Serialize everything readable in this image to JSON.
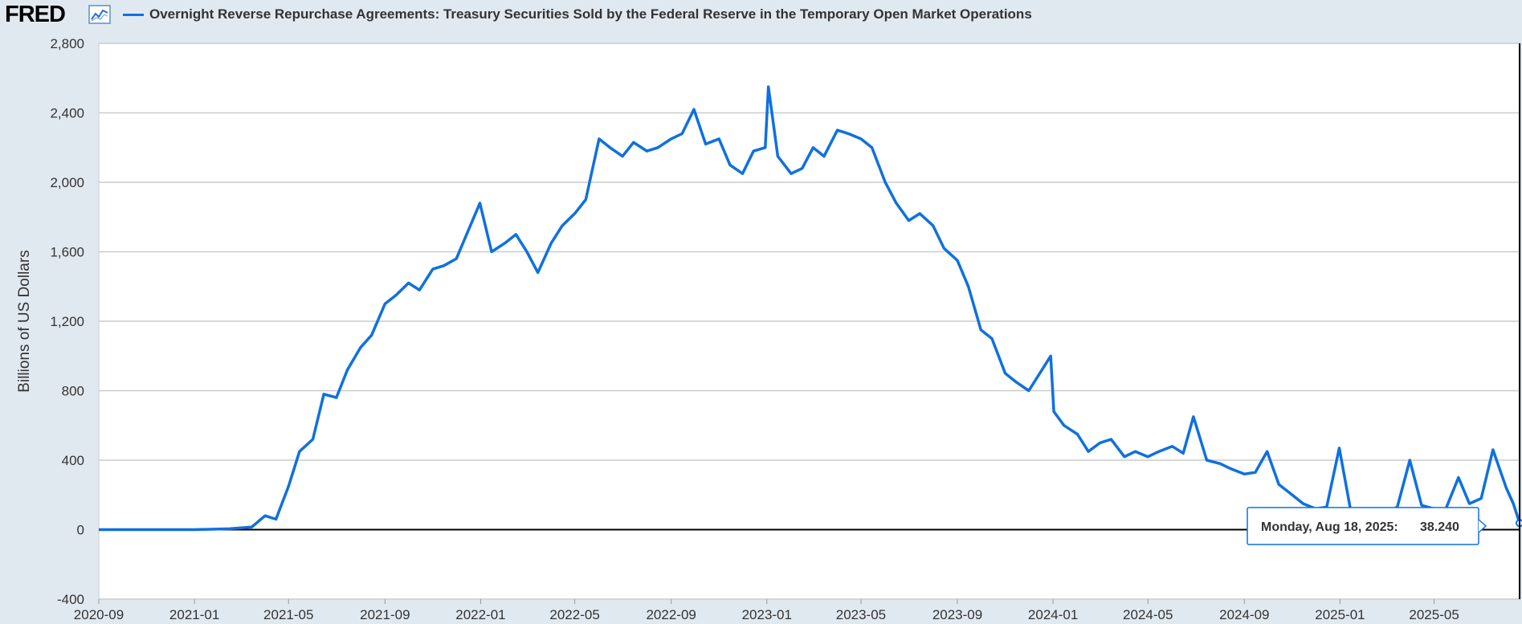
{
  "header": {
    "logo_text": "FRED",
    "logo_icon": "line-chart-icon",
    "series_title": "Overnight Reverse Repurchase Agreements: Treasury Securities Sold by the Federal Reserve in the Temporary Open Market Operations"
  },
  "tooltip": {
    "date": "Monday, Aug 18, 2025:",
    "value": "38.240"
  },
  "colors": {
    "series": "#0f70e0",
    "background": "#e1e9f0",
    "plot_background": "#ffffff"
  },
  "chart_data": {
    "type": "line",
    "title": "Overnight Reverse Repurchase Agreements: Treasury Securities Sold by the Federal Reserve in the Temporary Open Market Operations",
    "xlabel": "",
    "ylabel": "Billions of US Dollars",
    "ylim": [
      -400,
      2800
    ],
    "yticks": [
      -400,
      0,
      400,
      800,
      1200,
      1600,
      2000,
      2400,
      2800
    ],
    "ytick_labels": [
      "-400",
      "0",
      "400",
      "800",
      "1,200",
      "1,600",
      "2,000",
      "2,400",
      "2,800"
    ],
    "xlim": [
      "2020-09-01",
      "2025-08-18"
    ],
    "xtick_labels": [
      "2020-09",
      "2021-01",
      "2021-05",
      "2021-09",
      "2022-01",
      "2022-05",
      "2022-09",
      "2023-01",
      "2023-05",
      "2023-09",
      "2024-01",
      "2024-05",
      "2024-09",
      "2025-01",
      "2025-05"
    ],
    "grid": true,
    "series": [
      {
        "x": [
          "2020-09-01",
          "2020-11-01",
          "2021-01-01",
          "2021-02-15",
          "2021-03-15",
          "2021-04-01",
          "2021-04-15",
          "2021-05-01",
          "2021-05-15",
          "2021-06-01",
          "2021-06-15",
          "2021-07-01",
          "2021-07-15",
          "2021-08-01",
          "2021-08-15",
          "2021-09-01",
          "2021-09-15",
          "2021-10-01",
          "2021-10-15",
          "2021-11-01",
          "2021-11-15",
          "2021-12-01",
          "2021-12-31",
          "2022-01-15",
          "2022-02-01",
          "2022-02-15",
          "2022-03-01",
          "2022-03-15",
          "2022-04-01",
          "2022-04-15",
          "2022-05-01",
          "2022-05-15",
          "2022-06-01",
          "2022-06-15",
          "2022-07-01",
          "2022-07-15",
          "2022-08-01",
          "2022-08-15",
          "2022-09-01",
          "2022-09-15",
          "2022-09-30",
          "2022-10-15",
          "2022-11-01",
          "2022-11-15",
          "2022-12-01",
          "2022-12-15",
          "2022-12-30",
          "2023-01-03",
          "2023-01-15",
          "2023-02-01",
          "2023-02-15",
          "2023-03-01",
          "2023-03-15",
          "2023-04-01",
          "2023-04-15",
          "2023-05-01",
          "2023-05-15",
          "2023-06-01",
          "2023-06-15",
          "2023-07-01",
          "2023-07-15",
          "2023-08-01",
          "2023-08-15",
          "2023-09-01",
          "2023-09-15",
          "2023-10-01",
          "2023-10-15",
          "2023-11-01",
          "2023-11-15",
          "2023-12-01",
          "2023-12-29",
          "2024-01-02",
          "2024-01-15",
          "2024-02-01",
          "2024-02-15",
          "2024-03-01",
          "2024-03-15",
          "2024-04-01",
          "2024-04-15",
          "2024-05-01",
          "2024-05-15",
          "2024-06-01",
          "2024-06-15",
          "2024-06-28",
          "2024-07-15",
          "2024-08-01",
          "2024-08-15",
          "2024-09-01",
          "2024-09-15",
          "2024-09-30",
          "2024-10-15",
          "2024-11-01",
          "2024-11-15",
          "2024-12-01",
          "2024-12-15",
          "2024-12-31",
          "2025-01-15",
          "2025-02-01",
          "2025-02-15",
          "2025-03-01",
          "2025-03-15",
          "2025-03-31",
          "2025-04-15",
          "2025-05-01",
          "2025-05-15",
          "2025-06-01",
          "2025-06-15",
          "2025-06-30",
          "2025-07-15",
          "2025-08-01",
          "2025-08-10",
          "2025-08-18"
        ],
        "values": [
          0,
          0,
          0,
          5,
          15,
          80,
          60,
          250,
          450,
          520,
          780,
          760,
          920,
          1050,
          1120,
          1300,
          1350,
          1420,
          1380,
          1500,
          1520,
          1560,
          1880,
          1600,
          1650,
          1700,
          1600,
          1480,
          1650,
          1750,
          1820,
          1900,
          2250,
          2200,
          2150,
          2230,
          2180,
          2200,
          2250,
          2280,
          2420,
          2220,
          2250,
          2100,
          2050,
          2180,
          2200,
          2550,
          2150,
          2050,
          2080,
          2200,
          2150,
          2300,
          2280,
          2250,
          2200,
          2000,
          1880,
          1780,
          1820,
          1750,
          1620,
          1550,
          1400,
          1150,
          1100,
          900,
          850,
          800,
          1000,
          680,
          600,
          550,
          450,
          500,
          520,
          420,
          450,
          420,
          450,
          480,
          440,
          650,
          400,
          380,
          350,
          320,
          330,
          450,
          260,
          200,
          150,
          120,
          130,
          470,
          100,
          110,
          120,
          100,
          130,
          400,
          140,
          120,
          110,
          300,
          150,
          180,
          460,
          240,
          150,
          38.24
        ]
      }
    ]
  }
}
